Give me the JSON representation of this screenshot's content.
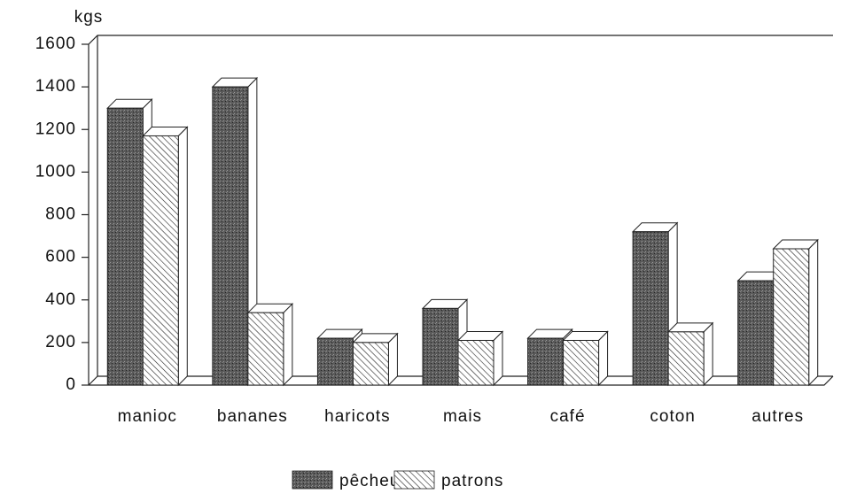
{
  "chart_data": {
    "type": "bar3d",
    "y_label": "kgs",
    "categories": [
      "manioc",
      "bananes",
      "haricots",
      "mais",
      "café",
      "coton",
      "autres"
    ],
    "series": [
      {
        "name": "pêcheurs",
        "color": "#4a4a4a",
        "pattern": "stipple",
        "values": [
          1300,
          1400,
          220,
          360,
          220,
          720,
          490
        ]
      },
      {
        "name": "patrons",
        "color": "#ffffff",
        "pattern": "hatch",
        "values": [
          1170,
          340,
          200,
          210,
          210,
          250,
          640
        ]
      }
    ],
    "ylim": [
      0,
      1600
    ],
    "yticks": [
      0,
      200,
      400,
      600,
      800,
      1000,
      1200,
      1400,
      1600
    ]
  }
}
